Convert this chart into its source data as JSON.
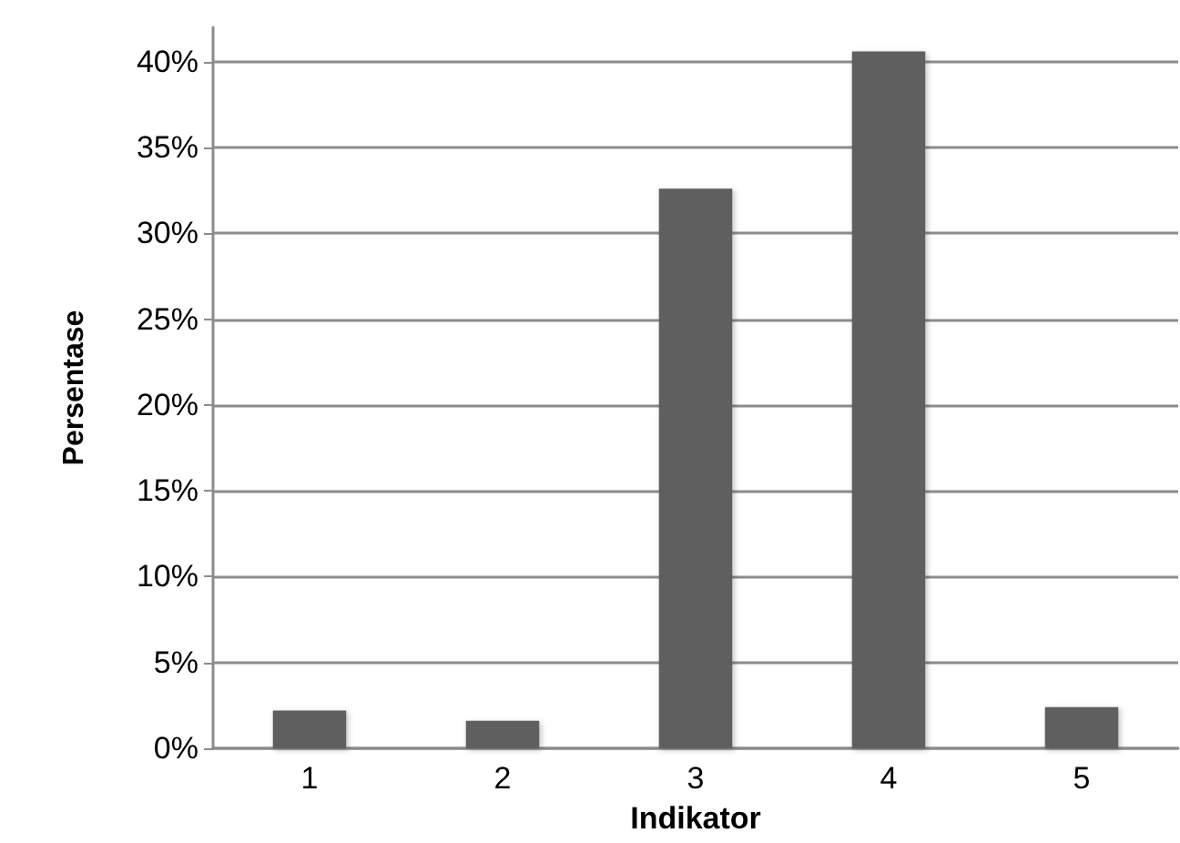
{
  "chart_data": {
    "type": "bar",
    "xlabel": "Indikator",
    "ylabel": "Persentase",
    "categories": [
      "1",
      "2",
      "3",
      "4",
      "5"
    ],
    "values": [
      2.2,
      1.6,
      32.6,
      40.6,
      2.4
    ],
    "color": "#5f5f5f",
    "ylim": [
      0,
      42
    ],
    "yticks": [
      {
        "value": 0,
        "label": "0%"
      },
      {
        "value": 5,
        "label": "5%"
      },
      {
        "value": 10,
        "label": "10%"
      },
      {
        "value": 15,
        "label": "15%"
      },
      {
        "value": 20,
        "label": "20%"
      },
      {
        "value": 25,
        "label": "25%"
      },
      {
        "value": 30,
        "label": "30%"
      },
      {
        "value": 35,
        "label": "35%"
      },
      {
        "value": 40,
        "label": "40%"
      }
    ],
    "grid": "y"
  }
}
